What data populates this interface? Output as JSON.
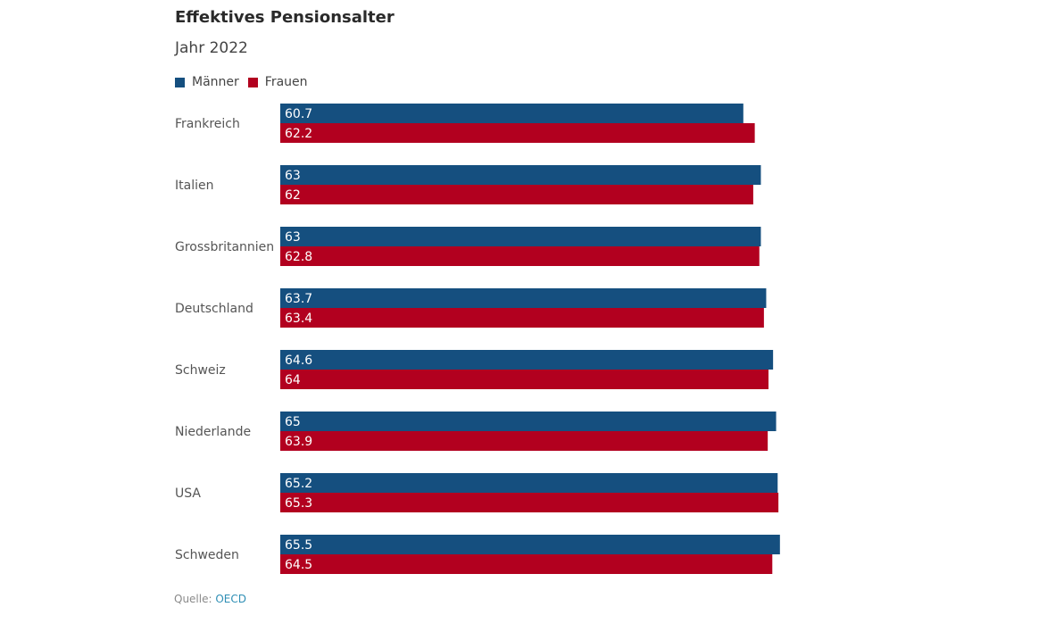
{
  "title": "Effektives Pensionsalter",
  "subtitle": "Jahr 2022",
  "colors": {
    "maenner": "#154f7f",
    "frauen": "#b2001f"
  },
  "source": {
    "label": "Quelle:",
    "link": "OECD"
  },
  "chart_data": {
    "type": "bar",
    "orientation": "horizontal",
    "title": "Effektives Pensionsalter",
    "subtitle": "Jahr 2022",
    "categories": [
      "Frankreich",
      "Italien",
      "Grossbritannien",
      "Deutschland",
      "Schweiz",
      "Niederlande",
      "USA",
      "Schweden"
    ],
    "series": [
      {
        "name": "Männer",
        "color": "#154f7f",
        "values": [
          60.7,
          63,
          63,
          63.7,
          64.6,
          65,
          65.2,
          65.5
        ],
        "labels": [
          "60.7",
          "63",
          "63",
          "63.7",
          "64.6",
          "65",
          "65.2",
          "65.5"
        ]
      },
      {
        "name": "Frauen",
        "color": "#b2001f",
        "values": [
          62.2,
          62,
          62.8,
          63.4,
          64,
          63.9,
          65.3,
          64.5
        ],
        "labels": [
          "62.2",
          "62",
          "62.8",
          "63.4",
          "64",
          "63.9",
          "65.3",
          "64.5"
        ]
      }
    ],
    "xlim": [
      0,
      66
    ],
    "xlabel": "",
    "ylabel": "",
    "grid": false,
    "legend": "top-left"
  }
}
